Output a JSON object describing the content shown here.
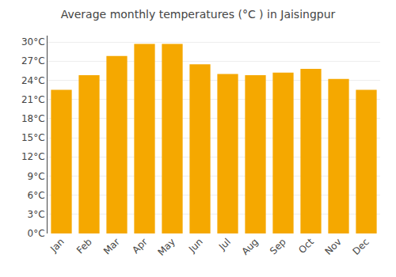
{
  "chart_data": {
    "type": "bar",
    "title": "Average monthly temperatures (°C ) in Jaisingpur",
    "categories": [
      "Jan",
      "Feb",
      "Mar",
      "Apr",
      "May",
      "Jun",
      "Jul",
      "Aug",
      "Sep",
      "Oct",
      "Nov",
      "Dec"
    ],
    "values": [
      22.5,
      24.8,
      27.8,
      29.7,
      29.7,
      26.5,
      25.0,
      24.8,
      25.2,
      25.8,
      24.2,
      22.5
    ],
    "color": "#F5A800",
    "ylim": [
      0,
      31
    ],
    "yticks": [
      {
        "value": 0,
        "label": "0°C"
      },
      {
        "value": 3,
        "label": "3°C"
      },
      {
        "value": 6,
        "label": "6°C"
      },
      {
        "value": 9,
        "label": "9°C"
      },
      {
        "value": 12,
        "label": "12°C"
      },
      {
        "value": 15,
        "label": "15°C"
      },
      {
        "value": 18,
        "label": "18°C"
      },
      {
        "value": 21,
        "label": "21°C"
      },
      {
        "value": 24,
        "label": "24°C"
      },
      {
        "value": 27,
        "label": "27°C"
      },
      {
        "value": 30,
        "label": "30°C"
      }
    ],
    "grid": true
  }
}
